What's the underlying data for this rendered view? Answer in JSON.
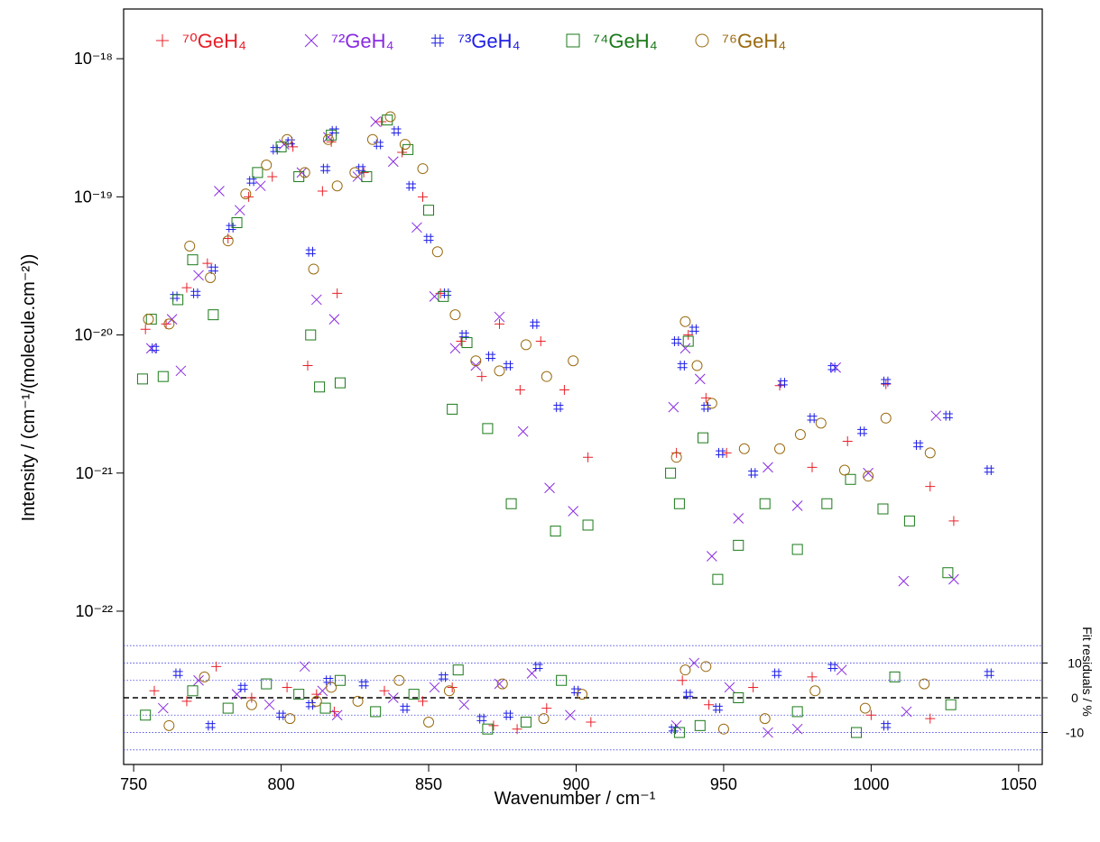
{
  "chart_data": [
    {
      "type": "scatter",
      "ylabel": "Intensity / (cm⁻¹/(molecule.cm⁻²))",
      "xlabel": "Wavenumber / cm⁻¹",
      "xlim": [
        746.6,
        1058
      ],
      "xticks": [
        750,
        800,
        850,
        900,
        950,
        1000,
        1050
      ],
      "yscale": "log",
      "ylim": [
        7.18e-23,
        2.29e-18
      ],
      "yticks": [
        {
          "value": 1e-22,
          "label": "10⁻²²"
        },
        {
          "value": 1e-21,
          "label": "10⁻²¹"
        },
        {
          "value": 1e-20,
          "label": "10⁻²⁰"
        },
        {
          "value": 1e-19,
          "label": "10⁻¹⁹"
        },
        {
          "value": 1e-18,
          "label": "10⁻¹⁸"
        }
      ],
      "legend": "top",
      "series": [
        {
          "name": "⁷⁰GeH₄",
          "color": "#e8202a",
          "marker": "plus",
          "x": [
            754,
            761,
            768,
            775,
            782,
            789,
            797,
            804,
            809,
            814,
            817,
            819,
            828,
            834,
            841,
            848,
            854,
            861,
            868,
            874,
            881,
            888,
            896,
            904,
            934,
            938,
            944,
            951,
            969,
            980,
            992,
            1005,
            1020,
            1028
          ],
          "values": [
            1.1e-20,
            1.2e-20,
            2.2e-20,
            3.3e-20,
            5e-20,
            1e-19,
            1.4e-19,
            2.3e-19,
            6e-21,
            1.1e-19,
            2.5e-19,
            2e-20,
            1.5e-19,
            3.5e-19,
            2.1e-19,
            1e-19,
            2e-20,
            9e-21,
            5e-21,
            1.2e-20,
            4e-21,
            9e-21,
            4e-21,
            1.3e-21,
            1.4e-21,
            1e-20,
            3.5e-21,
            1.4e-21,
            4.3e-21,
            1.1e-21,
            1.7e-21,
            4.4e-21,
            8e-22,
            4.5e-22
          ]
        },
        {
          "name": "⁷²GeH₄",
          "color": "#8a2be2",
          "marker": "cross",
          "x": [
            756,
            763,
            766,
            772,
            779,
            786,
            793,
            801,
            807,
            812,
            816,
            818,
            826,
            832,
            838,
            846,
            852,
            859,
            866,
            874,
            882,
            891,
            899,
            933,
            937,
            942,
            946,
            955,
            965,
            975,
            988,
            999,
            1011,
            1022,
            1028
          ],
          "values": [
            8e-21,
            1.3e-20,
            5.5e-21,
            2.7e-20,
            1.1e-19,
            8e-20,
            1.2e-19,
            2.4e-19,
            1.5e-19,
            1.8e-20,
            2.7e-19,
            1.3e-20,
            1.4e-19,
            3.5e-19,
            1.8e-19,
            6e-20,
            1.9e-20,
            8e-21,
            6e-21,
            1.35e-20,
            2e-21,
            7.8e-22,
            5.3e-22,
            3e-21,
            8e-21,
            4.8e-21,
            2.5e-22,
            4.7e-22,
            1.1e-21,
            5.8e-22,
            5.8e-21,
            1e-21,
            1.65e-22,
            2.6e-21,
            1.7e-22
          ]
        },
        {
          "name": "⁷³GeH₄",
          "color": "#1f1fe6",
          "marker": "hash",
          "x": [
            757,
            764,
            771,
            777,
            783,
            790,
            798,
            803,
            810,
            815,
            818,
            827,
            833,
            839,
            844,
            850,
            856,
            862,
            871,
            877,
            886,
            894,
            934,
            936,
            940,
            944,
            949,
            960,
            970,
            980,
            987,
            997,
            1005,
            1016,
            1026,
            1040
          ],
          "values": [
            8e-21,
            1.9e-20,
            2e-20,
            3e-20,
            6e-20,
            1.3e-19,
            2.2e-19,
            2.5e-19,
            4e-20,
            1.6e-19,
            3e-19,
            1.6e-19,
            2.4e-19,
            3e-19,
            1.2e-19,
            5e-20,
            2e-20,
            1e-20,
            7e-21,
            6e-21,
            1.2e-20,
            3e-21,
            9e-21,
            6e-21,
            1.1e-20,
            3e-21,
            1.4e-21,
            1e-21,
            4.5e-21,
            2.5e-21,
            5.8e-21,
            2e-21,
            4.6e-21,
            1.6e-21,
            2.6e-21,
            1.05e-21
          ]
        },
        {
          "name": "⁷⁴GeH₄",
          "color": "#1a7a1a",
          "marker": "square",
          "x": [
            753,
            756,
            760,
            765,
            770,
            777,
            785,
            792,
            800,
            806,
            810,
            813,
            817,
            820,
            829,
            836,
            843,
            850,
            855,
            858,
            863,
            870,
            878,
            893,
            904,
            932,
            935,
            938,
            943,
            948,
            955,
            964,
            975,
            985,
            993,
            1004,
            1013,
            1026
          ],
          "values": [
            4.8e-21,
            1.3e-20,
            5e-21,
            1.8e-20,
            3.5e-20,
            1.4e-20,
            6.5e-20,
            1.5e-19,
            2.3e-19,
            1.4e-19,
            1e-20,
            4.2e-21,
            2.8e-19,
            4.5e-21,
            1.4e-19,
            3.6e-19,
            2.2e-19,
            8e-20,
            1.9e-20,
            2.9e-21,
            8.8e-21,
            2.1e-21,
            6e-22,
            3.8e-22,
            4.2e-22,
            1e-21,
            6e-22,
            9e-21,
            1.8e-21,
            1.7e-22,
            3e-22,
            6e-22,
            2.8e-22,
            6e-22,
            9e-22,
            5.5e-22,
            4.5e-22,
            1.9e-22
          ]
        },
        {
          "name": "⁷⁶GeH₄",
          "color": "#9a6a10",
          "marker": "circle",
          "x": [
            755,
            762,
            769,
            776,
            782,
            788,
            795,
            802,
            808,
            811,
            816,
            819,
            825,
            831,
            837,
            842,
            848,
            853,
            859,
            866,
            874,
            883,
            890,
            899,
            934,
            937,
            941,
            946,
            957,
            969,
            976,
            983,
            991,
            999,
            1005,
            1020
          ],
          "values": [
            1.3e-20,
            1.2e-20,
            4.4e-20,
            2.6e-20,
            4.8e-20,
            1.05e-19,
            1.7e-19,
            2.6e-19,
            1.5e-19,
            3e-20,
            2.6e-19,
            1.2e-19,
            1.5e-19,
            2.6e-19,
            3.8e-19,
            2.4e-19,
            1.6e-19,
            4e-20,
            1.4e-20,
            6.5e-21,
            5.5e-21,
            8.5e-21,
            5e-21,
            6.5e-21,
            1.3e-21,
            1.25e-20,
            6e-21,
            3.2e-21,
            1.5e-21,
            1.5e-21,
            1.9e-21,
            2.3e-21,
            1.05e-21,
            9.5e-22,
            2.5e-21,
            1.4e-21
          ]
        }
      ]
    },
    {
      "type": "scatter",
      "ylabel": "Fit residuals / %",
      "ylim": [
        -19.2,
        19.2
      ],
      "yticks": [
        -10,
        0,
        10
      ],
      "y_axis_side": "right",
      "guide_lines": [
        -15,
        -10,
        -5,
        5,
        10,
        15
      ],
      "zero_line": true,
      "series": [
        {
          "color": "#e8202a",
          "marker": "plus",
          "x": [
            757,
            768,
            778,
            790,
            802,
            812,
            818,
            835,
            848,
            858,
            872,
            880,
            890,
            905,
            936,
            945,
            960,
            980,
            1000,
            1020
          ],
          "values": [
            2,
            -1,
            9,
            0,
            3,
            1,
            -4,
            2,
            -1,
            3,
            -8,
            -9,
            -3,
            -7,
            5,
            -2,
            3,
            6,
            -5,
            -6
          ]
        },
        {
          "color": "#8a2be2",
          "marker": "cross",
          "x": [
            760,
            772,
            785,
            796,
            808,
            814,
            819,
            838,
            852,
            862,
            874,
            885,
            898,
            934,
            940,
            952,
            965,
            975,
            990,
            1012
          ],
          "values": [
            -3,
            5,
            1,
            -2,
            9,
            2,
            -5,
            0,
            3,
            -2,
            4,
            7,
            -5,
            -8,
            10,
            3,
            -10,
            -9,
            8,
            -4
          ]
        },
        {
          "color": "#1f1fe6",
          "marker": "hash",
          "x": [
            765,
            776,
            787,
            800,
            810,
            816,
            828,
            842,
            855,
            868,
            877,
            887,
            900,
            933,
            938,
            948,
            968,
            987,
            1005,
            1040
          ],
          "values": [
            7,
            -8,
            3,
            -5,
            -2,
            5,
            4,
            -3,
            6,
            -6,
            -5,
            9,
            2,
            -9,
            1,
            -3,
            7,
            9,
            -8,
            7
          ]
        },
        {
          "color": "#1a7a1a",
          "marker": "square",
          "x": [
            754,
            770,
            782,
            795,
            806,
            815,
            820,
            832,
            845,
            860,
            870,
            883,
            895,
            935,
            942,
            955,
            975,
            995,
            1008,
            1027
          ],
          "values": [
            -5,
            2,
            -3,
            4,
            1,
            -3,
            5,
            -4,
            1,
            8,
            -9,
            -7,
            5,
            -10,
            -8,
            0,
            -4,
            -10,
            6,
            -2
          ]
        },
        {
          "color": "#9a6a10",
          "marker": "circle",
          "x": [
            762,
            774,
            790,
            803,
            812,
            817,
            826,
            840,
            850,
            857,
            875,
            889,
            902,
            937,
            944,
            950,
            964,
            981,
            998,
            1018
          ],
          "values": [
            -8,
            6,
            -2,
            -6,
            -1,
            3,
            -1,
            5,
            -7,
            2,
            4,
            -6,
            1,
            8,
            9,
            -9,
            -6,
            2,
            -3,
            4
          ]
        }
      ]
    }
  ]
}
